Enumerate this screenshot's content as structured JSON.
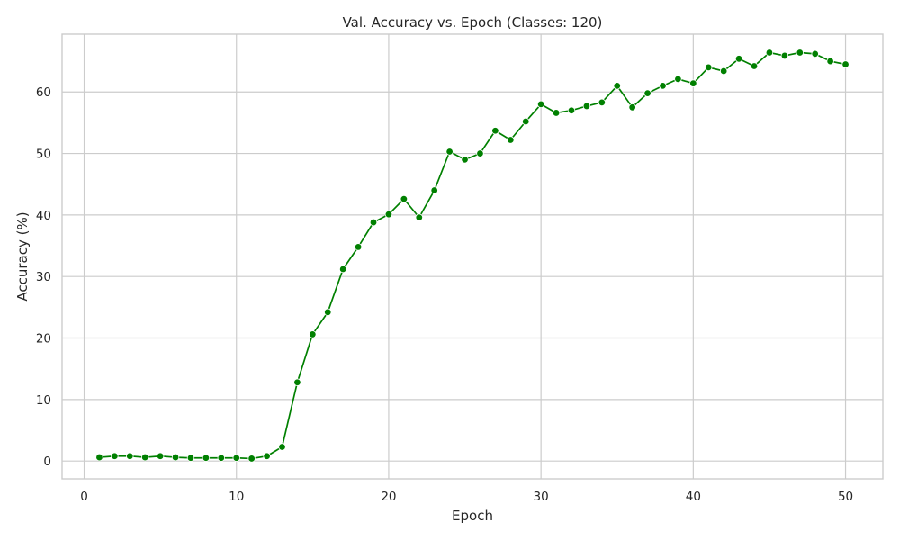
{
  "chart_data": {
    "type": "line",
    "title": "Val. Accuracy vs. Epoch (Classes: 120)",
    "xlabel": "Epoch",
    "ylabel": "Accuracy (%)",
    "xlim": [
      -1.45,
      52.45
    ],
    "ylim": [
      -2.9,
      69.4
    ],
    "xticks": [
      0,
      10,
      20,
      30,
      40,
      50
    ],
    "yticks": [
      0,
      10,
      20,
      30,
      40,
      50,
      60
    ],
    "grid": true,
    "legend": "none",
    "color": "#008000",
    "series": [
      {
        "x": [
          1,
          2,
          3,
          4,
          5,
          6,
          7,
          8,
          9,
          10,
          11,
          12,
          13,
          14,
          15,
          16,
          17,
          18,
          19,
          20,
          21,
          22,
          23,
          24,
          25,
          26,
          27,
          28,
          29,
          30,
          31,
          32,
          33,
          34,
          35,
          36,
          37,
          38,
          39,
          40,
          41,
          42,
          43,
          44,
          45,
          46,
          47,
          48,
          49,
          50
        ],
        "values": [
          0.6,
          0.8,
          0.8,
          0.6,
          0.8,
          0.6,
          0.5,
          0.5,
          0.5,
          0.5,
          0.4,
          0.8,
          2.3,
          12.8,
          20.6,
          24.2,
          31.2,
          34.8,
          38.8,
          40.1,
          42.6,
          39.6,
          44.0,
          50.3,
          49.0,
          50.0,
          53.7,
          52.2,
          55.2,
          58.0,
          56.6,
          57.0,
          57.7,
          58.3,
          61.0,
          57.5,
          59.8,
          61.0,
          62.1,
          61.4,
          64.0,
          63.4,
          65.4,
          64.2,
          66.4,
          65.9,
          66.4,
          66.2,
          65.0,
          64.5
        ]
      }
    ]
  }
}
